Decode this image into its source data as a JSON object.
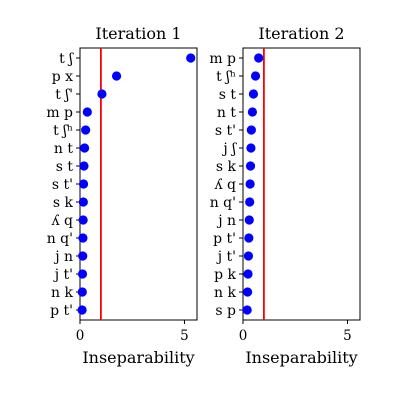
{
  "colors": {
    "marker": "#0000ff",
    "threshold": "#ff0000",
    "frame": "#000000",
    "background": "#ffffff"
  },
  "chart_data": [
    {
      "type": "scatter",
      "title": "Iteration 1",
      "xlabel": "Inseparability",
      "ylabel": "",
      "xlim": [
        0,
        5.6
      ],
      "xticks": [
        "0",
        "5"
      ],
      "xtick_values": [
        0,
        5
      ],
      "threshold": 1,
      "categories": [
        "t ʃ",
        "p x",
        "t ʃ'",
        "m p",
        "t ʃʰ",
        "n t",
        "s t",
        "s t'",
        "s k",
        "ʎ q",
        "n q'",
        "j n",
        "j t'",
        "n k",
        "p t'"
      ],
      "values": [
        5.3,
        1.75,
        1.05,
        0.35,
        0.27,
        0.22,
        0.19,
        0.17,
        0.16,
        0.15,
        0.14,
        0.13,
        0.12,
        0.11,
        0.1
      ]
    },
    {
      "type": "scatter",
      "title": "Iteration 2",
      "xlabel": "Inseparability",
      "ylabel": "",
      "xlim": [
        0,
        5.6
      ],
      "xticks": [
        "0",
        "5"
      ],
      "xtick_values": [
        0,
        5
      ],
      "threshold": 1,
      "categories": [
        "m p",
        "t ʃʰ",
        "s t",
        "n t",
        "s t'",
        "j ʃ",
        "s k",
        "ʎ q",
        "n q'",
        "j n",
        "p t'",
        "j t'",
        "p k",
        "n k",
        "s p"
      ],
      "values": [
        0.75,
        0.6,
        0.5,
        0.45,
        0.4,
        0.38,
        0.36,
        0.34,
        0.32,
        0.3,
        0.28,
        0.26,
        0.24,
        0.22,
        0.2
      ]
    }
  ]
}
